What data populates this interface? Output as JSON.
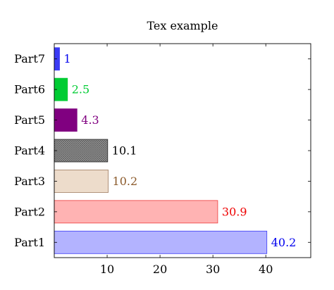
{
  "chart_data": {
    "type": "bar",
    "orientation": "horizontal",
    "title": "Tex example",
    "xlabel": "",
    "ylabel": "",
    "xlim": [
      0,
      48.5
    ],
    "x_ticks": [
      "10",
      "20",
      "30",
      "40"
    ],
    "grid": false,
    "categories": [
      "Part1",
      "Part2",
      "Part3",
      "Part4",
      "Part5",
      "Part6",
      "Part7"
    ],
    "values": [
      40.2,
      30.9,
      10.2,
      10.1,
      4.3,
      2.5,
      1
    ],
    "value_labels": [
      "40.2",
      "30.9",
      "10.2",
      "10.1",
      "4.3",
      "2.5",
      "1"
    ],
    "bar_styles": [
      {
        "fill": "#b3b3ff",
        "stroke": "#3b3bf5",
        "label_color": "#0000ee",
        "pattern": "none"
      },
      {
        "fill": "#ffb3b3",
        "stroke": "#ee3b3b",
        "label_color": "#ee0000",
        "pattern": "none"
      },
      {
        "fill": "#eddccb",
        "stroke": "#a07c60",
        "label_color": "#8b5a2b",
        "pattern": "none"
      },
      {
        "fill": "#8c8c8c",
        "stroke": "#222222",
        "label_color": "#000000",
        "pattern": "crosshatch"
      },
      {
        "fill": "#800080",
        "stroke": "#800080",
        "label_color": "#800080",
        "pattern": "none"
      },
      {
        "fill": "#00cc33",
        "stroke": "#00cc33",
        "label_color": "#00cc33",
        "pattern": "none"
      },
      {
        "fill": "#3b3bf5",
        "stroke": "#3b3bf5",
        "label_color": "#0000ee",
        "pattern": "none"
      }
    ]
  }
}
